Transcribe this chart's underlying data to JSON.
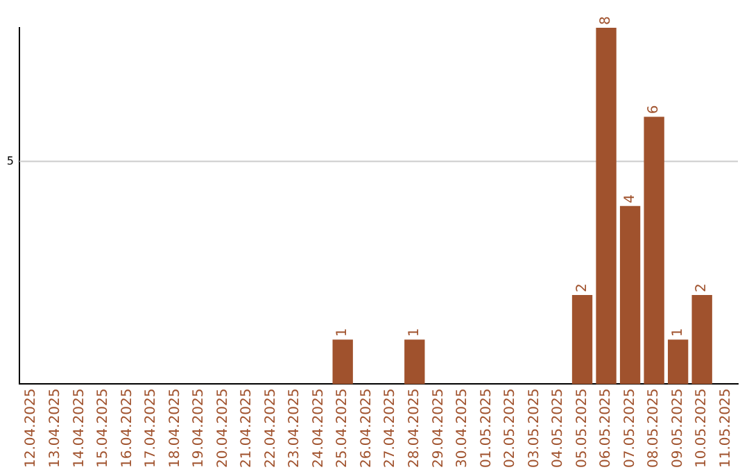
{
  "chart_data": {
    "type": "bar",
    "categories": [
      "12.04.2025",
      "13.04.2025",
      "14.04.2025",
      "15.04.2025",
      "16.04.2025",
      "17.04.2025",
      "18.04.2025",
      "19.04.2025",
      "20.04.2025",
      "21.04.2025",
      "22.04.2025",
      "23.04.2025",
      "24.04.2025",
      "25.04.2025",
      "26.04.2025",
      "27.04.2025",
      "28.04.2025",
      "29.04.2025",
      "30.04.2025",
      "01.05.2025",
      "02.05.2025",
      "03.05.2025",
      "04.05.2025",
      "05.05.2025",
      "06.05.2025",
      "07.05.2025",
      "08.05.2025",
      "09.05.2025",
      "10.05.2025",
      "11.05.2025"
    ],
    "values": [
      null,
      null,
      null,
      null,
      null,
      null,
      null,
      null,
      null,
      null,
      null,
      null,
      null,
      1,
      null,
      null,
      1,
      null,
      null,
      null,
      null,
      null,
      null,
      2,
      8,
      4,
      6,
      1,
      2,
      null
    ],
    "value_labels": [
      null,
      null,
      null,
      null,
      null,
      null,
      null,
      null,
      null,
      null,
      null,
      null,
      null,
      "1",
      null,
      null,
      "1",
      null,
      null,
      null,
      null,
      null,
      null,
      "2",
      "8",
      "4",
      "6",
      "1",
      "2",
      null
    ],
    "color": "#a0522d",
    "ref_lines": [
      {
        "axis": "y",
        "value": 5,
        "label": "5",
        "color": "#cccccc"
      }
    ]
  }
}
